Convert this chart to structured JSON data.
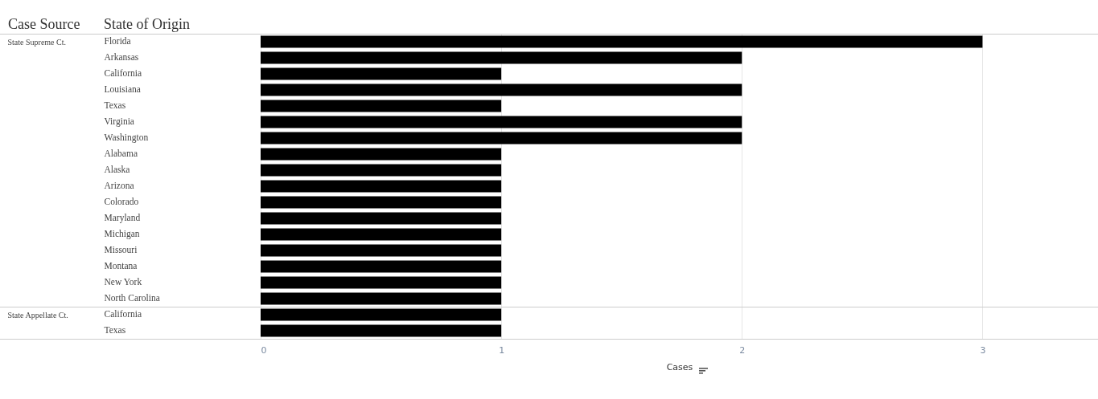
{
  "chart_data": [
    {
      "type": "bar",
      "orientation": "horizontal",
      "annotations": [
        "Case Source",
        "State of Origin"
      ],
      "ylabel": "State Supreme Ct.",
      "categories": [
        "Florida",
        "Arkansas",
        "California",
        "Louisiana",
        "Texas",
        "Virginia",
        "Washington",
        "Alabama",
        "Alaska",
        "Arizona",
        "Colorado",
        "Maryland",
        "Michigan",
        "Missouri",
        "Montana",
        "New York",
        "North Carolina"
      ],
      "values": [
        3,
        2,
        1,
        2,
        1,
        2,
        2,
        1,
        1,
        1,
        1,
        1,
        1,
        1,
        1,
        1,
        1
      ],
      "color": "#000000",
      "xlim": [
        0,
        3.48
      ],
      "xticks": [
        0,
        1,
        2,
        3
      ],
      "grid": "x",
      "tick_labels": "y"
    },
    {
      "type": "bar",
      "orientation": "horizontal",
      "ylabel": "State Appellate Ct.",
      "xlabel": "Cases",
      "categories": [
        "California",
        "Texas"
      ],
      "values": [
        1,
        1
      ],
      "color": "#000000",
      "xlim": [
        0,
        3.48
      ],
      "xticks": [
        0,
        1,
        2,
        3
      ],
      "grid": "x"
    }
  ]
}
